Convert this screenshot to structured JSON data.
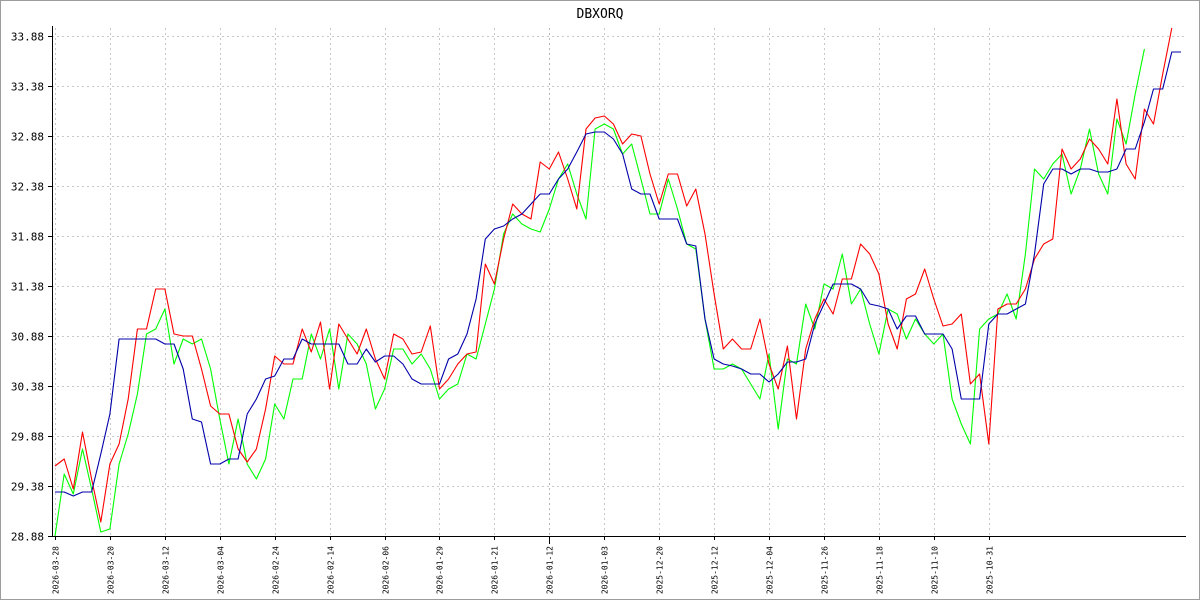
{
  "chart_data": {
    "type": "line",
    "title": "DBXORQ",
    "xlabel": "",
    "ylabel": "",
    "ylim": [
      28.88,
      33.96
    ],
    "y_ticks": [
      "28.88",
      "29.38",
      "29.88",
      "30.38",
      "30.88",
      "31.38",
      "31.88",
      "32.38",
      "32.88",
      "33.38",
      "33.88"
    ],
    "x_ticks": [
      {
        "label": "2026-03-28",
        "index": 0
      },
      {
        "label": "2026-03-20",
        "index": 6
      },
      {
        "label": "2026-03-12",
        "index": 12
      },
      {
        "label": "2026-03-04",
        "index": 18
      },
      {
        "label": "2026-02-24",
        "index": 24
      },
      {
        "label": "2026-02-14",
        "index": 30
      },
      {
        "label": "2026-02-06",
        "index": 36
      },
      {
        "label": "2026-01-29",
        "index": 42
      },
      {
        "label": "2026-01-21",
        "index": 48
      },
      {
        "label": "2026-01-12",
        "index": 54
      },
      {
        "label": "2026-01-03",
        "index": 60
      },
      {
        "label": "2025-12-20",
        "index": 66
      },
      {
        "label": "2025-12-12",
        "index": 72
      },
      {
        "label": "2025-12-04",
        "index": 78
      },
      {
        "label": "2025-11-26",
        "index": 84
      },
      {
        "label": "2025-11-18",
        "index": 90
      },
      {
        "label": "2025-11-10",
        "index": 96
      },
      {
        "label": "2025-10-31",
        "index": 102
      }
    ],
    "major_vline_index": 54,
    "grid": true,
    "reversed_time": true,
    "series": [
      {
        "color": "#00ff00",
        "values": [
          28.88,
          29.5,
          29.3,
          29.75,
          29.35,
          28.92,
          28.95,
          29.6,
          29.9,
          30.3,
          30.9,
          30.95,
          31.15,
          30.6,
          30.85,
          30.8,
          30.85,
          30.55,
          30.05,
          29.6,
          30.05,
          29.6,
          29.45,
          29.65,
          30.2,
          30.05,
          30.45,
          30.45,
          30.9,
          30.65,
          30.95,
          30.35,
          30.9,
          30.8,
          30.6,
          30.15,
          30.35,
          30.75,
          30.75,
          30.6,
          30.7,
          30.55,
          30.25,
          30.35,
          30.4,
          30.7,
          30.65,
          31.0,
          31.35,
          31.9,
          32.1,
          32.0,
          31.95,
          31.92,
          32.15,
          32.45,
          32.6,
          32.3,
          32.05,
          32.95,
          33.0,
          32.95,
          32.7,
          32.8,
          32.45,
          32.1,
          32.1,
          32.45,
          32.15,
          31.8,
          31.75,
          31.05,
          30.55,
          30.55,
          30.6,
          30.55,
          30.4,
          30.25,
          30.7,
          29.95,
          30.65,
          30.6,
          31.2,
          30.95,
          31.4,
          31.35,
          31.7,
          31.2,
          31.35,
          31.0,
          30.7,
          31.15,
          31.1,
          30.85,
          31.05,
          30.9,
          30.8,
          30.9,
          30.25,
          30.0,
          29.8,
          30.95,
          31.05,
          31.1,
          31.3,
          31.05,
          31.7,
          32.55,
          32.45,
          32.6,
          32.7,
          32.3,
          32.55,
          32.95,
          32.5,
          32.3,
          33.05,
          32.8,
          33.3,
          33.75
        ]
      },
      {
        "color": "#ff0000",
        "values": [
          29.58,
          29.65,
          29.35,
          29.92,
          29.45,
          29.02,
          29.6,
          29.8,
          30.25,
          30.95,
          30.95,
          31.35,
          31.35,
          30.9,
          30.88,
          30.88,
          30.55,
          30.18,
          30.1,
          30.1,
          29.75,
          29.62,
          29.75,
          30.15,
          30.68,
          30.6,
          30.6,
          30.95,
          30.72,
          31.02,
          30.35,
          31.0,
          30.85,
          30.7,
          30.95,
          30.65,
          30.45,
          30.9,
          30.85,
          30.7,
          30.72,
          30.98,
          30.35,
          30.45,
          30.6,
          30.7,
          30.72,
          31.6,
          31.4,
          31.85,
          32.2,
          32.1,
          32.05,
          32.62,
          32.55,
          32.72,
          32.45,
          32.15,
          32.95,
          33.06,
          33.08,
          33.0,
          32.8,
          32.9,
          32.88,
          32.5,
          32.2,
          32.5,
          32.5,
          32.18,
          32.35,
          31.9,
          31.3,
          30.75,
          30.85,
          30.75,
          30.75,
          31.05,
          30.6,
          30.35,
          30.78,
          30.05,
          30.75,
          31.05,
          31.25,
          31.1,
          31.45,
          31.45,
          31.8,
          31.7,
          31.5,
          31.0,
          30.75,
          31.25,
          31.3,
          31.55,
          31.25,
          30.98,
          31.0,
          31.1,
          30.4,
          30.5,
          29.8,
          31.15,
          31.2,
          31.2,
          31.35,
          31.65,
          31.8,
          31.85,
          32.75,
          32.55,
          32.65,
          32.85,
          32.75,
          32.6,
          33.25,
          32.6,
          32.45,
          33.15,
          33.0,
          33.5,
          33.96
        ]
      },
      {
        "color": "#0000aa",
        "values": [
          29.32,
          29.32,
          29.28,
          29.32,
          29.32,
          29.7,
          30.1,
          30.85,
          30.85,
          30.85,
          30.85,
          30.85,
          30.8,
          30.8,
          30.55,
          30.05,
          30.02,
          29.6,
          29.6,
          29.65,
          29.65,
          30.1,
          30.25,
          30.45,
          30.48,
          30.65,
          30.65,
          30.85,
          30.8,
          30.8,
          30.8,
          30.8,
          30.6,
          30.6,
          30.75,
          30.62,
          30.68,
          30.68,
          30.6,
          30.45,
          30.4,
          30.4,
          30.4,
          30.65,
          30.7,
          30.9,
          31.25,
          31.85,
          31.95,
          31.98,
          32.05,
          32.1,
          32.2,
          32.3,
          32.3,
          32.45,
          32.55,
          32.72,
          32.9,
          32.92,
          32.92,
          32.85,
          32.7,
          32.35,
          32.3,
          32.3,
          32.05,
          32.05,
          32.05,
          31.8,
          31.78,
          31.05,
          30.65,
          30.6,
          30.58,
          30.55,
          30.5,
          30.5,
          30.42,
          30.5,
          30.62,
          30.62,
          30.65,
          31.0,
          31.2,
          31.4,
          31.4,
          31.4,
          31.35,
          31.2,
          31.18,
          31.15,
          30.95,
          31.08,
          31.08,
          30.9,
          30.9,
          30.9,
          30.75,
          30.25,
          30.25,
          30.25,
          31.0,
          31.1,
          31.1,
          31.15,
          31.2,
          31.7,
          32.4,
          32.55,
          32.55,
          32.5,
          32.55,
          32.55,
          32.52,
          32.52,
          32.55,
          32.75,
          32.75,
          33.02,
          33.35,
          33.35,
          33.72,
          33.72
        ]
      }
    ]
  }
}
